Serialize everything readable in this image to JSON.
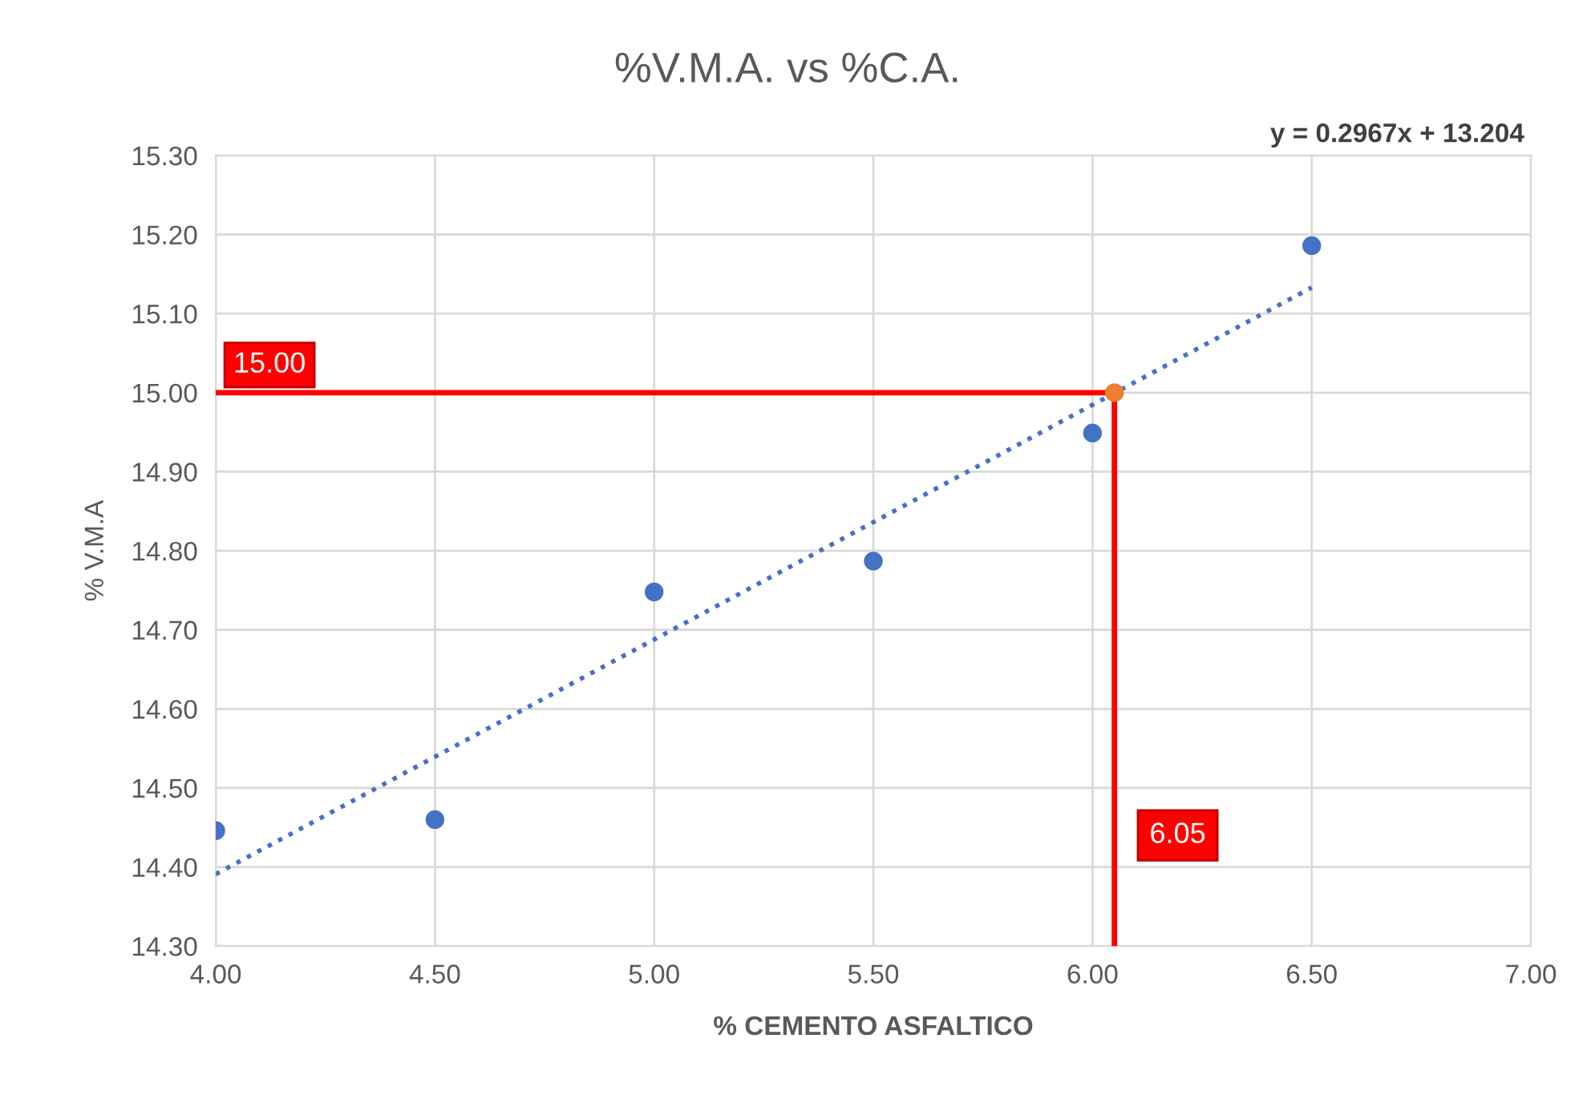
{
  "chart_data": {
    "type": "scatter",
    "title": "%V.M.A. vs %C.A.",
    "xlabel": "% CEMENTO ASFALTICO",
    "ylabel": "% V.M.A",
    "series": [
      {
        "color": "#4472c4",
        "x": [
          4.0,
          4.5,
          5.0,
          5.5,
          6.0,
          6.5
        ],
        "values": [
          14.446,
          14.46,
          14.748,
          14.787,
          14.949,
          15.186
        ]
      },
      {
        "color": "#ed7d31",
        "x": [
          6.05
        ],
        "values": [
          15.0
        ]
      },
      {
        "type": "line",
        "color": "#4472c4",
        "line_style": "dotted",
        "marker": "none",
        "x": [
          4.0,
          6.5
        ],
        "values": [
          14.391,
          15.133
        ]
      }
    ],
    "xlim": [
      4.0,
      7.0
    ],
    "xticks": [
      {
        "value": 4.0,
        "label": "4.00"
      },
      {
        "value": 4.5,
        "label": "4.50"
      },
      {
        "value": 5.0,
        "label": "5.00"
      },
      {
        "value": 5.5,
        "label": "5.50"
      },
      {
        "value": 6.0,
        "label": "6.00"
      },
      {
        "value": 6.5,
        "label": "6.50"
      },
      {
        "value": 7.0,
        "label": "7.00"
      }
    ],
    "ylim": [
      14.3,
      15.3
    ],
    "yticks": [
      {
        "value": 14.3,
        "label": "14.30"
      },
      {
        "value": 14.4,
        "label": "14.40"
      },
      {
        "value": 14.5,
        "label": "14.50"
      },
      {
        "value": 14.6,
        "label": "14.60"
      },
      {
        "value": 14.7,
        "label": "14.70"
      },
      {
        "value": 14.8,
        "label": "14.80"
      },
      {
        "value": 14.9,
        "label": "14.90"
      },
      {
        "value": 15.0,
        "label": "15.00"
      },
      {
        "value": 15.1,
        "label": "15.10"
      },
      {
        "value": 15.2,
        "label": "15.20"
      },
      {
        "value": 15.3,
        "label": "15.30"
      }
    ],
    "ref_lines": [
      {
        "axis": "y",
        "value": 15.0,
        "label": "15.00",
        "color": "#ff0000"
      },
      {
        "axis": "x",
        "value": 6.05,
        "label": "6.05",
        "color": "#ff0000"
      }
    ],
    "annotations": [
      "y = 0.2967x + 13.204"
    ],
    "grid": true,
    "marker": "circle"
  }
}
